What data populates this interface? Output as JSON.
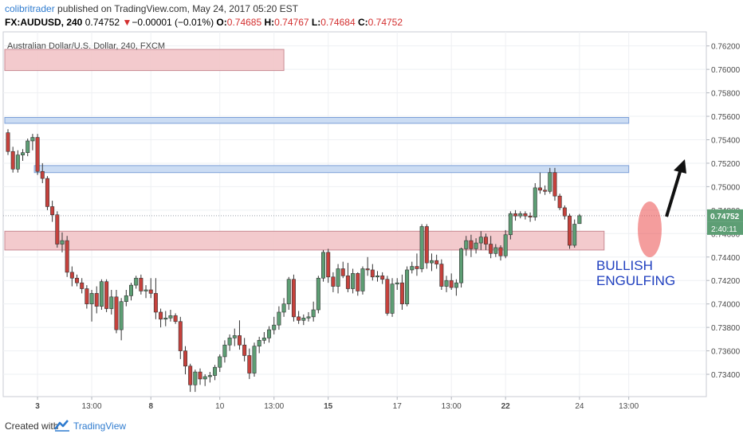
{
  "header": {
    "author": "colibritrader",
    "published_text": "published on TradingView.com, May 24, 2017 05:20 EST",
    "symbol": "FX:AUDUSD, 240",
    "last": "0.74752",
    "change_arrow": "▼",
    "change": "−0.00001 (−0.01%)",
    "o_label": "O:",
    "o_value": "0.74685",
    "h_label": "H:",
    "h_value": "0.74767",
    "l_label": "L:",
    "l_value": "0.74684",
    "c_label": "C:",
    "c_value": "0.74752"
  },
  "chart_data": {
    "type": "candlestick",
    "title": "Australian Dollar/U.S. Dollar, 240, FXCM",
    "ylim": [
      0.7321,
      0.7632
    ],
    "y_ticks": [
      0.734,
      0.736,
      0.738,
      0.74,
      0.742,
      0.744,
      0.746,
      0.748,
      0.75,
      0.752,
      0.754,
      0.756,
      0.758,
      0.76,
      0.762
    ],
    "y_tick_labels": [
      "0.73400",
      "0.73600",
      "0.73800",
      "0.74000",
      "0.74200",
      "0.74400",
      "0.74600",
      "0.74800",
      "0.75000",
      "0.75200",
      "0.75400",
      "0.75600",
      "0.75800",
      "0.76000",
      "0.76200"
    ],
    "x_ticks": [
      {
        "label": "3",
        "bar": 6,
        "bold": true
      },
      {
        "label": "13:00",
        "bar": 17
      },
      {
        "label": "8",
        "bar": 29,
        "bold": true
      },
      {
        "label": "10",
        "bar": 43
      },
      {
        "label": "13:00",
        "bar": 54
      },
      {
        "label": "15",
        "bar": 65,
        "bold": true
      },
      {
        "label": "17",
        "bar": 79
      },
      {
        "label": "13:00",
        "bar": 90
      },
      {
        "label": "22",
        "bar": 101,
        "bold": true
      },
      {
        "label": "24",
        "bar": 116
      },
      {
        "label": "13:00",
        "bar": 126
      }
    ],
    "last_price": 0.74752,
    "last_price_label": "0.74752",
    "countdown_label": "2:40:11",
    "current_price_line": 0.74752,
    "zones": [
      {
        "kind": "resistance",
        "color": "#f2c4c8",
        "from_bar": 0,
        "to_bar": 56,
        "y_top": 0.7617,
        "y_bottom": 0.7599
      },
      {
        "kind": "resistance",
        "color": "#c5d8f2",
        "from_bar": 0,
        "to_bar": 126,
        "y_top": 0.7559,
        "y_bottom": 0.7554
      },
      {
        "kind": "resistance",
        "color": "#c5d8f2",
        "from_bar": 6,
        "to_bar": 126,
        "y_top": 0.7518,
        "y_bottom": 0.7512
      },
      {
        "kind": "support",
        "color": "#f2c4c8",
        "from_bar": 0,
        "to_bar": 121,
        "y_top": 0.7462,
        "y_bottom": 0.7446
      }
    ],
    "annotation": "BULLISH\nENGULFING",
    "annotation_color": "#1f3fbf",
    "up_color": "#5d9e74",
    "down_color": "#c6413c",
    "candles": [
      {
        "o": 0.7546,
        "h": 0.7549,
        "l": 0.7527,
        "c": 0.753
      },
      {
        "o": 0.753,
        "h": 0.7534,
        "l": 0.7512,
        "c": 0.7515
      },
      {
        "o": 0.7515,
        "h": 0.7531,
        "l": 0.7512,
        "c": 0.7527
      },
      {
        "o": 0.7527,
        "h": 0.7532,
        "l": 0.7522,
        "c": 0.7529
      },
      {
        "o": 0.7529,
        "h": 0.7541,
        "l": 0.7526,
        "c": 0.7539
      },
      {
        "o": 0.7539,
        "h": 0.7545,
        "l": 0.7531,
        "c": 0.7542
      },
      {
        "o": 0.7542,
        "h": 0.7545,
        "l": 0.751,
        "c": 0.7513
      },
      {
        "o": 0.7513,
        "h": 0.752,
        "l": 0.7503,
        "c": 0.7507
      },
      {
        "o": 0.7507,
        "h": 0.7509,
        "l": 0.748,
        "c": 0.7483
      },
      {
        "o": 0.7483,
        "h": 0.7488,
        "l": 0.747,
        "c": 0.7476
      },
      {
        "o": 0.7476,
        "h": 0.7479,
        "l": 0.7448,
        "c": 0.7451
      },
      {
        "o": 0.7451,
        "h": 0.7461,
        "l": 0.7444,
        "c": 0.7454
      },
      {
        "o": 0.7454,
        "h": 0.7458,
        "l": 0.7423,
        "c": 0.7427
      },
      {
        "o": 0.7427,
        "h": 0.7432,
        "l": 0.7415,
        "c": 0.7422
      },
      {
        "o": 0.7422,
        "h": 0.7425,
        "l": 0.7415,
        "c": 0.7418
      },
      {
        "o": 0.7418,
        "h": 0.7422,
        "l": 0.7409,
        "c": 0.7413
      },
      {
        "o": 0.7413,
        "h": 0.7416,
        "l": 0.7396,
        "c": 0.74
      },
      {
        "o": 0.74,
        "h": 0.7412,
        "l": 0.7385,
        "c": 0.7409
      },
      {
        "o": 0.7409,
        "h": 0.7415,
        "l": 0.7392,
        "c": 0.7398
      },
      {
        "o": 0.7398,
        "h": 0.7421,
        "l": 0.7395,
        "c": 0.7419
      },
      {
        "o": 0.7419,
        "h": 0.7421,
        "l": 0.7393,
        "c": 0.7396
      },
      {
        "o": 0.7396,
        "h": 0.7412,
        "l": 0.7391,
        "c": 0.7406
      },
      {
        "o": 0.7406,
        "h": 0.7412,
        "l": 0.7375,
        "c": 0.7378
      },
      {
        "o": 0.7378,
        "h": 0.7405,
        "l": 0.7369,
        "c": 0.7402
      },
      {
        "o": 0.7402,
        "h": 0.7412,
        "l": 0.7398,
        "c": 0.7407
      },
      {
        "o": 0.7407,
        "h": 0.7418,
        "l": 0.7403,
        "c": 0.7416
      },
      {
        "o": 0.7416,
        "h": 0.7424,
        "l": 0.7413,
        "c": 0.7422
      },
      {
        "o": 0.7422,
        "h": 0.7425,
        "l": 0.7408,
        "c": 0.7411
      },
      {
        "o": 0.7411,
        "h": 0.7416,
        "l": 0.7405,
        "c": 0.7412
      },
      {
        "o": 0.7412,
        "h": 0.7422,
        "l": 0.7405,
        "c": 0.7409
      },
      {
        "o": 0.7409,
        "h": 0.7422,
        "l": 0.7387,
        "c": 0.7393
      },
      {
        "o": 0.7393,
        "h": 0.7396,
        "l": 0.738,
        "c": 0.7387
      },
      {
        "o": 0.7387,
        "h": 0.7394,
        "l": 0.7381,
        "c": 0.7388
      },
      {
        "o": 0.7388,
        "h": 0.7395,
        "l": 0.7385,
        "c": 0.739
      },
      {
        "o": 0.739,
        "h": 0.7392,
        "l": 0.7383,
        "c": 0.7385
      },
      {
        "o": 0.7385,
        "h": 0.7389,
        "l": 0.7353,
        "c": 0.736
      },
      {
        "o": 0.736,
        "h": 0.7364,
        "l": 0.734,
        "c": 0.7347
      },
      {
        "o": 0.7347,
        "h": 0.7349,
        "l": 0.7325,
        "c": 0.7331
      },
      {
        "o": 0.7331,
        "h": 0.7344,
        "l": 0.7325,
        "c": 0.7342
      },
      {
        "o": 0.7342,
        "h": 0.7345,
        "l": 0.7331,
        "c": 0.7336
      },
      {
        "o": 0.7336,
        "h": 0.734,
        "l": 0.733,
        "c": 0.7338
      },
      {
        "o": 0.7338,
        "h": 0.7342,
        "l": 0.7333,
        "c": 0.7339
      },
      {
        "o": 0.7339,
        "h": 0.7348,
        "l": 0.7335,
        "c": 0.7346
      },
      {
        "o": 0.7346,
        "h": 0.7357,
        "l": 0.7342,
        "c": 0.7355
      },
      {
        "o": 0.7355,
        "h": 0.7369,
        "l": 0.735,
        "c": 0.7365
      },
      {
        "o": 0.7365,
        "h": 0.7374,
        "l": 0.736,
        "c": 0.7371
      },
      {
        "o": 0.7371,
        "h": 0.7379,
        "l": 0.7364,
        "c": 0.7373
      },
      {
        "o": 0.7373,
        "h": 0.7386,
        "l": 0.7361,
        "c": 0.7365
      },
      {
        "o": 0.7365,
        "h": 0.7371,
        "l": 0.7351,
        "c": 0.7356
      },
      {
        "o": 0.7356,
        "h": 0.7362,
        "l": 0.7336,
        "c": 0.7341
      },
      {
        "o": 0.7341,
        "h": 0.7367,
        "l": 0.7338,
        "c": 0.7364
      },
      {
        "o": 0.7364,
        "h": 0.7372,
        "l": 0.7358,
        "c": 0.7369
      },
      {
        "o": 0.7369,
        "h": 0.7376,
        "l": 0.7366,
        "c": 0.7371
      },
      {
        "o": 0.7371,
        "h": 0.7381,
        "l": 0.7367,
        "c": 0.7378
      },
      {
        "o": 0.7378,
        "h": 0.7389,
        "l": 0.7374,
        "c": 0.7382
      },
      {
        "o": 0.7382,
        "h": 0.7398,
        "l": 0.7378,
        "c": 0.7393
      },
      {
        "o": 0.7393,
        "h": 0.7405,
        "l": 0.7389,
        "c": 0.74
      },
      {
        "o": 0.74,
        "h": 0.7423,
        "l": 0.7395,
        "c": 0.7421
      },
      {
        "o": 0.7421,
        "h": 0.7425,
        "l": 0.7385,
        "c": 0.7389
      },
      {
        "o": 0.7389,
        "h": 0.7394,
        "l": 0.7383,
        "c": 0.7386
      },
      {
        "o": 0.7386,
        "h": 0.7391,
        "l": 0.7382,
        "c": 0.7388
      },
      {
        "o": 0.7388,
        "h": 0.7393,
        "l": 0.7385,
        "c": 0.7389
      },
      {
        "o": 0.7389,
        "h": 0.7402,
        "l": 0.7385,
        "c": 0.7395
      },
      {
        "o": 0.7395,
        "h": 0.7424,
        "l": 0.7392,
        "c": 0.7422
      },
      {
        "o": 0.7422,
        "h": 0.7446,
        "l": 0.7419,
        "c": 0.7444
      },
      {
        "o": 0.7444,
        "h": 0.7447,
        "l": 0.7418,
        "c": 0.7423
      },
      {
        "o": 0.7423,
        "h": 0.7427,
        "l": 0.741,
        "c": 0.7415
      },
      {
        "o": 0.7415,
        "h": 0.7434,
        "l": 0.7409,
        "c": 0.743
      },
      {
        "o": 0.743,
        "h": 0.7436,
        "l": 0.7422,
        "c": 0.7424
      },
      {
        "o": 0.7424,
        "h": 0.7435,
        "l": 0.741,
        "c": 0.7413
      },
      {
        "o": 0.7413,
        "h": 0.743,
        "l": 0.7409,
        "c": 0.7426
      },
      {
        "o": 0.7426,
        "h": 0.7427,
        "l": 0.7407,
        "c": 0.7411
      },
      {
        "o": 0.7411,
        "h": 0.7432,
        "l": 0.7408,
        "c": 0.743
      },
      {
        "o": 0.743,
        "h": 0.744,
        "l": 0.7424,
        "c": 0.7429
      },
      {
        "o": 0.7429,
        "h": 0.7434,
        "l": 0.742,
        "c": 0.7423
      },
      {
        "o": 0.7423,
        "h": 0.7428,
        "l": 0.7419,
        "c": 0.7424
      },
      {
        "o": 0.7424,
        "h": 0.7427,
        "l": 0.7417,
        "c": 0.7421
      },
      {
        "o": 0.7421,
        "h": 0.7424,
        "l": 0.739,
        "c": 0.7392
      },
      {
        "o": 0.7392,
        "h": 0.7422,
        "l": 0.7389,
        "c": 0.7417
      },
      {
        "o": 0.7417,
        "h": 0.7422,
        "l": 0.7412,
        "c": 0.7418
      },
      {
        "o": 0.7418,
        "h": 0.7425,
        "l": 0.7395,
        "c": 0.74
      },
      {
        "o": 0.74,
        "h": 0.7432,
        "l": 0.7398,
        "c": 0.7429
      },
      {
        "o": 0.7429,
        "h": 0.7436,
        "l": 0.7426,
        "c": 0.7432
      },
      {
        "o": 0.7432,
        "h": 0.7443,
        "l": 0.7424,
        "c": 0.743
      },
      {
        "o": 0.743,
        "h": 0.7468,
        "l": 0.7427,
        "c": 0.7466
      },
      {
        "o": 0.7466,
        "h": 0.7468,
        "l": 0.743,
        "c": 0.7435
      },
      {
        "o": 0.7435,
        "h": 0.7443,
        "l": 0.7428,
        "c": 0.7437
      },
      {
        "o": 0.7437,
        "h": 0.7442,
        "l": 0.743,
        "c": 0.7434
      },
      {
        "o": 0.7434,
        "h": 0.7438,
        "l": 0.7412,
        "c": 0.7415
      },
      {
        "o": 0.7415,
        "h": 0.7424,
        "l": 0.741,
        "c": 0.742
      },
      {
        "o": 0.742,
        "h": 0.7426,
        "l": 0.7412,
        "c": 0.7414
      },
      {
        "o": 0.7414,
        "h": 0.7421,
        "l": 0.7407,
        "c": 0.7418
      },
      {
        "o": 0.7418,
        "h": 0.7448,
        "l": 0.7414,
        "c": 0.7447
      },
      {
        "o": 0.7447,
        "h": 0.7458,
        "l": 0.7441,
        "c": 0.7454
      },
      {
        "o": 0.7454,
        "h": 0.7459,
        "l": 0.744,
        "c": 0.7447
      },
      {
        "o": 0.7447,
        "h": 0.7456,
        "l": 0.7443,
        "c": 0.7452
      },
      {
        "o": 0.7452,
        "h": 0.7462,
        "l": 0.7446,
        "c": 0.7457
      },
      {
        "o": 0.7457,
        "h": 0.746,
        "l": 0.7446,
        "c": 0.7451
      },
      {
        "o": 0.7451,
        "h": 0.7458,
        "l": 0.7439,
        "c": 0.7443
      },
      {
        "o": 0.7443,
        "h": 0.7451,
        "l": 0.744,
        "c": 0.7448
      },
      {
        "o": 0.7448,
        "h": 0.745,
        "l": 0.7437,
        "c": 0.7441
      },
      {
        "o": 0.7441,
        "h": 0.7463,
        "l": 0.7439,
        "c": 0.7459
      },
      {
        "o": 0.7459,
        "h": 0.7479,
        "l": 0.7455,
        "c": 0.7477
      },
      {
        "o": 0.7477,
        "h": 0.748,
        "l": 0.7471,
        "c": 0.7475
      },
      {
        "o": 0.7475,
        "h": 0.7479,
        "l": 0.7473,
        "c": 0.7477
      },
      {
        "o": 0.7477,
        "h": 0.7479,
        "l": 0.7472,
        "c": 0.7475
      },
      {
        "o": 0.7475,
        "h": 0.7478,
        "l": 0.747,
        "c": 0.7474
      },
      {
        "o": 0.7474,
        "h": 0.7503,
        "l": 0.7471,
        "c": 0.7499
      },
      {
        "o": 0.7499,
        "h": 0.7512,
        "l": 0.7494,
        "c": 0.7497
      },
      {
        "o": 0.7497,
        "h": 0.7501,
        "l": 0.7493,
        "c": 0.7496
      },
      {
        "o": 0.7496,
        "h": 0.7516,
        "l": 0.7494,
        "c": 0.7512
      },
      {
        "o": 0.7512,
        "h": 0.7516,
        "l": 0.7488,
        "c": 0.7492
      },
      {
        "o": 0.7492,
        "h": 0.7494,
        "l": 0.748,
        "c": 0.7482
      },
      {
        "o": 0.7482,
        "h": 0.7484,
        "l": 0.7472,
        "c": 0.7475
      },
      {
        "o": 0.7475,
        "h": 0.7477,
        "l": 0.7447,
        "c": 0.745
      },
      {
        "o": 0.745,
        "h": 0.7472,
        "l": 0.7448,
        "c": 0.7468
      },
      {
        "o": 0.74685,
        "h": 0.74767,
        "l": 0.74684,
        "c": 0.74752
      }
    ]
  },
  "footer": {
    "created_with": "Created with",
    "brand": "TradingView"
  }
}
